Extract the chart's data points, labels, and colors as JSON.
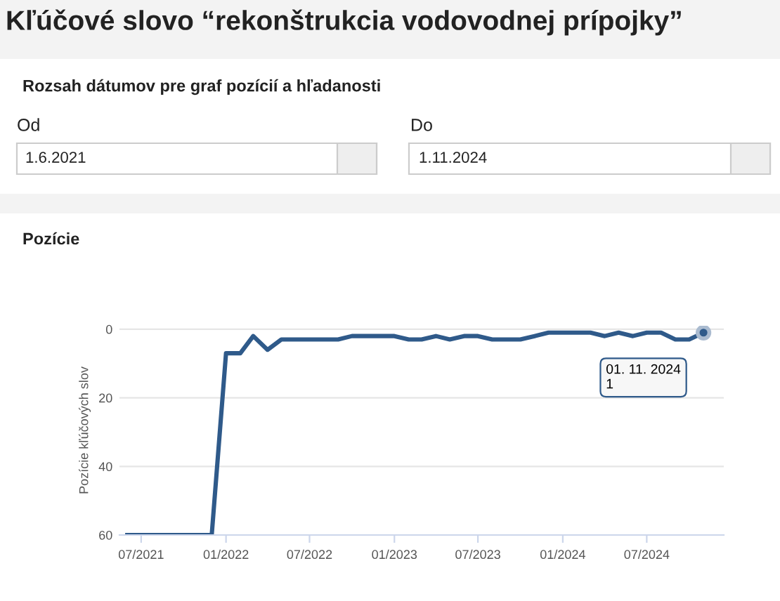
{
  "chart_data": {
    "type": "line",
    "title": "Kľúčové slovo “rekonštrukcia vodovodnej prípojky”",
    "subtitle": "Pozície",
    "annotations": [
      "Rozsah dátumov pre graf pozícií a hľadanosti",
      "Od",
      "1.6.2021",
      "Do",
      "1.11.2024",
      {
        "text": "01. 11. 2024\n1",
        "x": "2024-11",
        "y": 1
      }
    ],
    "ylabel": "Pozície kľúčových slov",
    "x": [
      "2021-06",
      "2021-07",
      "2021-08",
      "2021-09",
      "2021-10",
      "2021-11",
      "2021-12",
      "2022-01",
      "2022-02",
      "2022-03",
      "2022-04",
      "2022-05",
      "2022-06",
      "2022-07",
      "2022-08",
      "2022-09",
      "2022-10",
      "2022-11",
      "2022-12",
      "2023-01",
      "2023-02",
      "2023-03",
      "2023-04",
      "2023-05",
      "2023-06",
      "2023-07",
      "2023-08",
      "2023-09",
      "2023-10",
      "2023-11",
      "2023-12",
      "2024-01",
      "2024-02",
      "2024-03",
      "2024-04",
      "2024-05",
      "2024-06",
      "2024-07",
      "2024-08",
      "2024-09",
      "2024-10",
      "2024-11"
    ],
    "series": [
      {
        "color": "#2f5a8a",
        "values": [
          60,
          60,
          60,
          60,
          60,
          60,
          60,
          7,
          7,
          2,
          6,
          3,
          3,
          3,
          3,
          3,
          2,
          2,
          2,
          2,
          3,
          3,
          2,
          3,
          2,
          2,
          3,
          3,
          3,
          2,
          1,
          1,
          1,
          1,
          2,
          1,
          2,
          1,
          1,
          3,
          3,
          1
        ]
      }
    ],
    "ylim": [
      60,
      -1
    ],
    "yticks": [
      0,
      20,
      40,
      60
    ],
    "xlim": [
      "2021-05-15",
      "2024-12-15"
    ],
    "xticks": [
      {
        "value": "2021-07",
        "label": "07/2021"
      },
      {
        "value": "2022-01",
        "label": "01/2022"
      },
      {
        "value": "2022-07",
        "label": "07/2022"
      },
      {
        "value": "2023-01",
        "label": "01/2023"
      },
      {
        "value": "2023-07",
        "label": "07/2023"
      },
      {
        "value": "2024-01",
        "label": "01/2024"
      },
      {
        "value": "2024-07",
        "label": "07/2024"
      }
    ],
    "grid": "y",
    "marker": "none",
    "line_style": "solid"
  }
}
